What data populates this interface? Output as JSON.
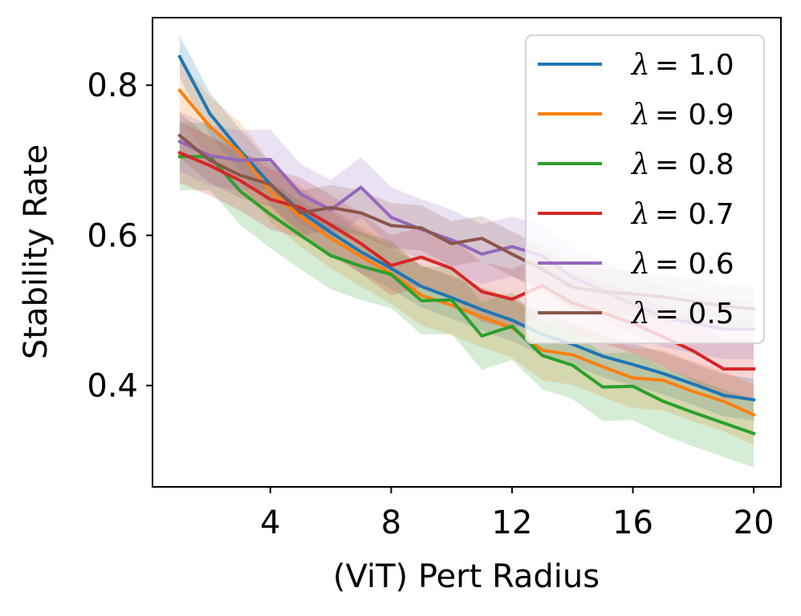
{
  "chart_data": {
    "type": "line",
    "title": "",
    "xlabel": "(ViT) Pert Radius",
    "ylabel": "Stability Rate",
    "xlim": [
      0.1,
      20.9
    ],
    "ylim": [
      0.265,
      0.89
    ],
    "xticks": [
      4,
      8,
      12,
      16,
      20
    ],
    "yticks": [
      0.4,
      0.6,
      0.8
    ],
    "xtick_labels": [
      "4",
      "8",
      "12",
      "16",
      "20"
    ],
    "ytick_labels": [
      "0.4",
      "0.6",
      "0.8"
    ],
    "legend_position": "top-right",
    "x": [
      1,
      2,
      3,
      4,
      5,
      6,
      7,
      8,
      9,
      10,
      11,
      12,
      13,
      14,
      15,
      16,
      17,
      18,
      19,
      20
    ],
    "series": [
      {
        "name": "λ = 1.0",
        "lambda_symbol": "λ",
        "lambda_value": "= 1.0",
        "color": "#1f77b4",
        "values": [
          0.838,
          0.762,
          0.713,
          0.668,
          0.632,
          0.604,
          0.578,
          0.556,
          0.532,
          0.517,
          0.501,
          0.487,
          0.468,
          0.455,
          0.439,
          0.428,
          0.416,
          0.402,
          0.387,
          0.381
        ],
        "band": 0.028
      },
      {
        "name": "λ = 0.9",
        "lambda_symbol": "λ",
        "lambda_value": "= 0.9",
        "color": "#ff7f0e",
        "values": [
          0.793,
          0.745,
          0.71,
          0.658,
          0.625,
          0.596,
          0.572,
          0.549,
          0.52,
          0.507,
          0.491,
          0.477,
          0.447,
          0.441,
          0.425,
          0.41,
          0.407,
          0.392,
          0.379,
          0.361
        ],
        "band": 0.04
      },
      {
        "name": "λ = 0.8",
        "lambda_symbol": "λ",
        "lambda_value": "= 0.8",
        "color": "#2ca02c",
        "values": [
          0.705,
          0.705,
          0.659,
          0.628,
          0.6,
          0.573,
          0.559,
          0.548,
          0.513,
          0.514,
          0.466,
          0.479,
          0.44,
          0.427,
          0.398,
          0.399,
          0.379,
          0.364,
          0.35,
          0.336
        ],
        "band": 0.045
      },
      {
        "name": "λ = 0.7",
        "lambda_symbol": "λ",
        "lambda_value": "= 0.7",
        "color": "#d62728",
        "values": [
          0.71,
          0.693,
          0.673,
          0.648,
          0.637,
          0.614,
          0.589,
          0.56,
          0.571,
          0.556,
          0.525,
          0.515,
          0.533,
          0.51,
          0.497,
          0.483,
          0.465,
          0.446,
          0.422,
          0.422
        ],
        "band": 0.04
      },
      {
        "name": "λ = 0.6",
        "lambda_symbol": "λ",
        "lambda_value": "= 0.6",
        "color": "#9467bd",
        "values": [
          0.725,
          0.706,
          0.7,
          0.701,
          0.655,
          0.634,
          0.664,
          0.624,
          0.608,
          0.594,
          0.575,
          0.585,
          0.573,
          0.544,
          0.527,
          0.508,
          0.491,
          0.483,
          0.475,
          0.475
        ],
        "band": 0.04
      },
      {
        "name": "λ = 0.5",
        "lambda_symbol": "λ",
        "lambda_value": "= 0.5",
        "color": "#8c564b",
        "values": [
          0.733,
          0.7,
          0.68,
          0.668,
          0.63,
          0.637,
          0.63,
          0.613,
          0.61,
          0.589,
          0.596,
          0.575,
          0.555,
          0.531,
          0.525,
          0.522,
          0.518,
          0.512,
          0.506,
          0.502
        ],
        "band": 0.03
      }
    ]
  }
}
